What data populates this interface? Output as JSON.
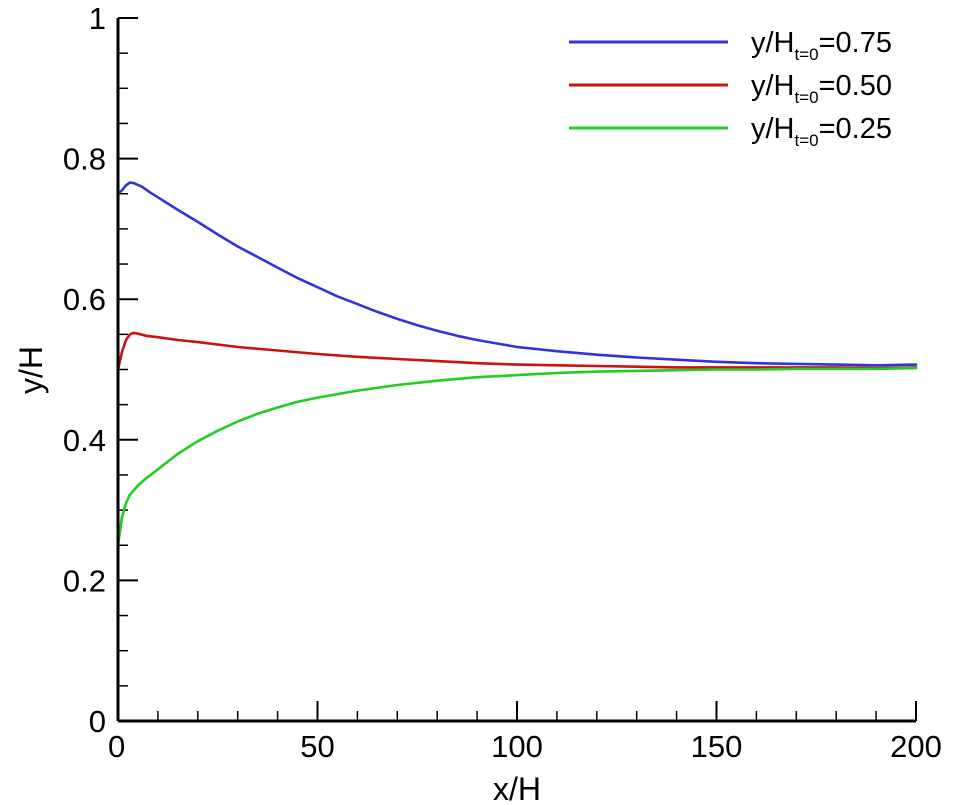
{
  "chart_data": {
    "type": "line",
    "xlabel": "x/H",
    "ylabel": "y/H",
    "xlim": [
      0,
      200
    ],
    "ylim": [
      0,
      1
    ],
    "x_ticks": [
      0,
      50,
      100,
      150,
      200
    ],
    "x_tick_labels": [
      "0",
      "50",
      "100",
      "150",
      "200"
    ],
    "y_ticks": [
      0,
      0.2,
      0.4,
      0.6,
      0.8,
      1
    ],
    "y_tick_labels": [
      "0",
      "0.2",
      "0.4",
      "0.6",
      "0.8",
      "1"
    ],
    "grid": false,
    "legend_position": "top-right",
    "series": [
      {
        "name": "y/H_t=0=0.75",
        "legend_main": "y/H",
        "legend_sub": "t=0",
        "legend_value": "=0.75",
        "color": "#3333dd",
        "x": [
          0,
          1,
          2,
          3,
          4,
          6,
          8,
          10,
          15,
          20,
          25,
          30,
          35,
          40,
          45,
          50,
          55,
          60,
          65,
          70,
          75,
          80,
          85,
          90,
          95,
          100,
          110,
          120,
          130,
          140,
          150,
          160,
          170,
          180,
          190,
          200
        ],
        "y": [
          0.75,
          0.755,
          0.762,
          0.766,
          0.765,
          0.76,
          0.752,
          0.745,
          0.727,
          0.71,
          0.692,
          0.675,
          0.66,
          0.645,
          0.63,
          0.617,
          0.604,
          0.593,
          0.582,
          0.572,
          0.563,
          0.555,
          0.548,
          0.542,
          0.537,
          0.532,
          0.526,
          0.521,
          0.517,
          0.514,
          0.511,
          0.509,
          0.508,
          0.507,
          0.506,
          0.507
        ]
      },
      {
        "name": "y/H_t=0=0.50",
        "legend_main": "y/H",
        "legend_sub": "t=0",
        "legend_value": "=0.50",
        "color": "#cc1111",
        "x": [
          0,
          1,
          2,
          3,
          4,
          5,
          7,
          10,
          15,
          20,
          30,
          40,
          50,
          60,
          70,
          80,
          90,
          100,
          110,
          120,
          130,
          140,
          150,
          160,
          170,
          180,
          190,
          200
        ],
        "y": [
          0.5,
          0.525,
          0.542,
          0.55,
          0.552,
          0.551,
          0.548,
          0.546,
          0.542,
          0.539,
          0.532,
          0.527,
          0.522,
          0.518,
          0.515,
          0.512,
          0.509,
          0.507,
          0.506,
          0.505,
          0.504,
          0.503,
          0.503,
          0.503,
          0.503,
          0.503,
          0.502,
          0.503
        ]
      },
      {
        "name": "y/H_t=0=0.25",
        "legend_main": "y/H",
        "legend_sub": "t=0",
        "legend_value": "=0.25",
        "color": "#22cc22",
        "x": [
          0,
          0.5,
          1,
          2,
          3,
          5,
          7,
          10,
          15,
          20,
          25,
          30,
          35,
          40,
          45,
          50,
          60,
          70,
          80,
          90,
          100,
          110,
          120,
          130,
          140,
          150,
          160,
          170,
          180,
          190,
          200
        ],
        "y": [
          0.25,
          0.27,
          0.29,
          0.31,
          0.322,
          0.335,
          0.345,
          0.358,
          0.38,
          0.398,
          0.413,
          0.426,
          0.437,
          0.446,
          0.454,
          0.46,
          0.47,
          0.478,
          0.484,
          0.489,
          0.492,
          0.495,
          0.497,
          0.498,
          0.499,
          0.5,
          0.5,
          0.501,
          0.501,
          0.501,
          0.502
        ]
      }
    ]
  }
}
